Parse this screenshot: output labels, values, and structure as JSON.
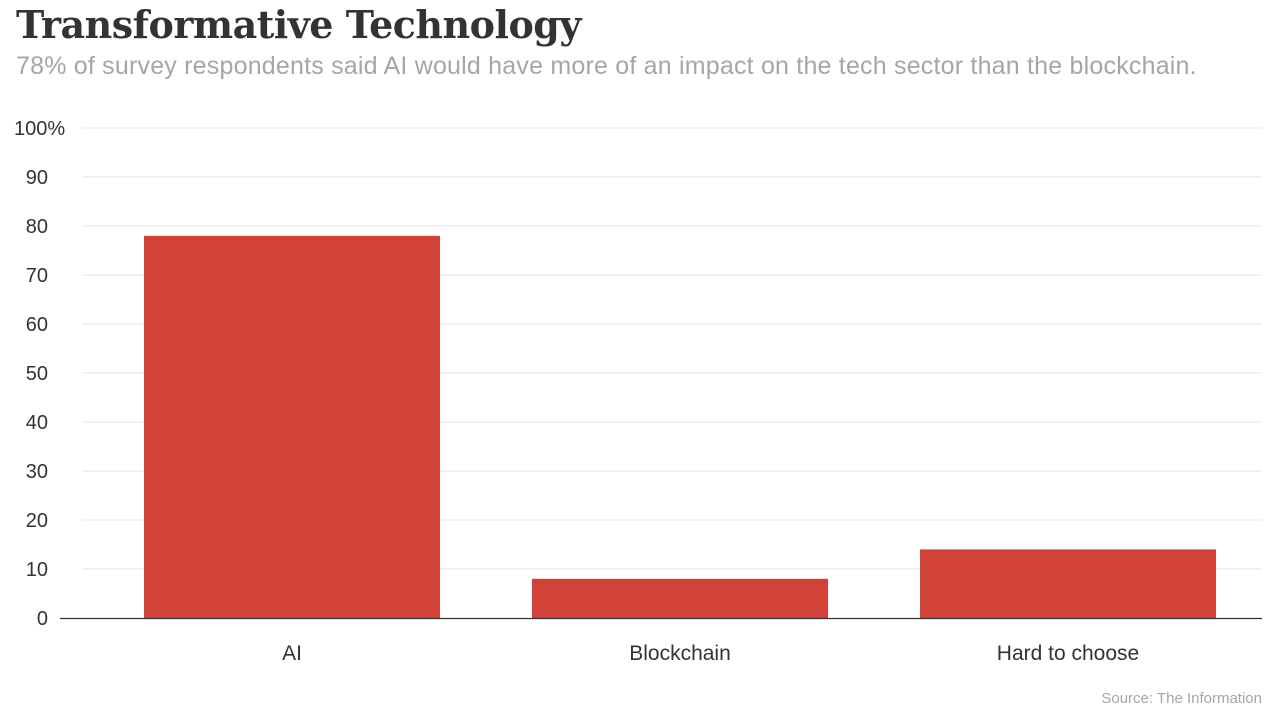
{
  "title": "Transformative Technology",
  "subtitle": "78% of survey respondents said AI would have more of an impact on the tech sector than the blockchain.",
  "source": "Source: The Information",
  "colors": {
    "bar": "#d14338",
    "grid": "#e6e6e6",
    "axis": "#333333",
    "text": "#333333",
    "muted": "#a6a6a6"
  },
  "chart_data": {
    "type": "bar",
    "categories": [
      "AI",
      "Blockchain",
      "Hard to choose"
    ],
    "values": [
      78,
      8,
      14
    ],
    "title": "Transformative Technology",
    "subtitle": "78% of survey respondents said AI would have more of an impact on the tech sector than the blockchain.",
    "xlabel": "",
    "ylabel": "",
    "ylim": [
      0,
      100
    ],
    "yticks": [
      0,
      10,
      20,
      30,
      40,
      50,
      60,
      70,
      80,
      90,
      100
    ],
    "ytick_labels": [
      "0",
      "10",
      "20",
      "30",
      "40",
      "50",
      "60",
      "70",
      "80",
      "90",
      "100%"
    ],
    "grid": true,
    "legend": "none"
  }
}
